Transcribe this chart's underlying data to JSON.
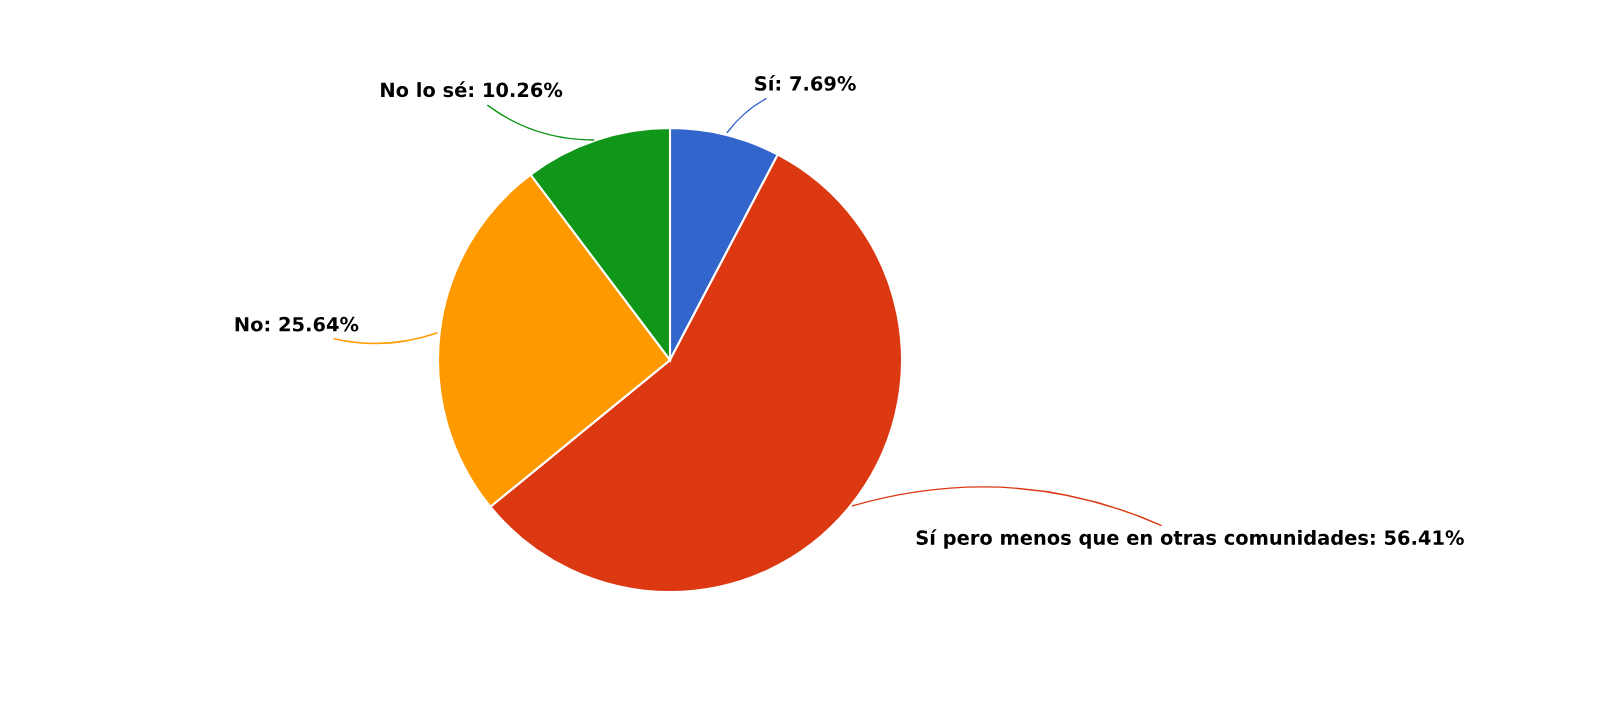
{
  "chart_data": {
    "type": "pie",
    "categories": [
      "Sí",
      "Sí pero menos que en otras comunidades",
      "No",
      "No lo sé"
    ],
    "values": [
      7.69,
      56.41,
      25.64,
      10.26
    ],
    "colors": [
      "#3366cc",
      "#dc3912",
      "#ff9900",
      "#109618"
    ],
    "value_labels": [
      "7.69%",
      "56.41%",
      "25.64%",
      "10.26%"
    ],
    "legend": false
  }
}
